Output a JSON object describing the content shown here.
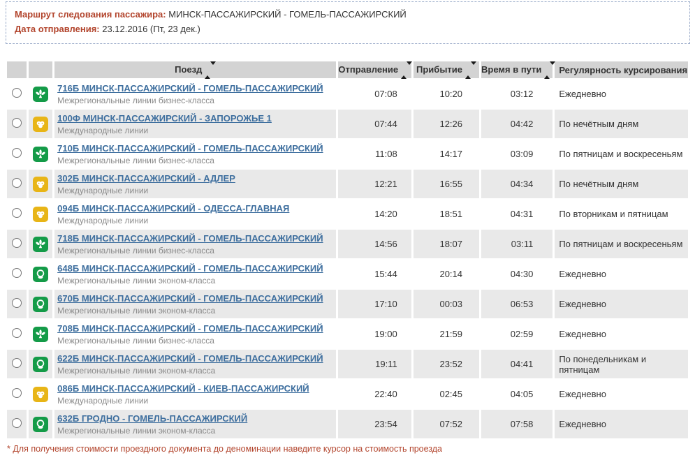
{
  "page": {
    "route_label": "Маршрут следования пассажира:",
    "route_value": "МИНСК-ПАССАЖИРСКИЙ - ГОМЕЛЬ-ПАССАЖИРСКИЙ",
    "date_label": "Дата отправления:",
    "date_value": "23.12.2016 (Пт, 23 дек.)",
    "footnote": "* Для получения стоимости проездного документа до деноминации наведите курсор на стоимость проезда"
  },
  "colors": {
    "accent_red": "#b2442c",
    "link_blue": "#3d6e9e",
    "header_gray": "#d3d3d3",
    "zebra_gray": "#e9e9e9",
    "icon_green": "#149b48",
    "icon_gold": "#e8b517",
    "dashed_border": "#9aabc9"
  },
  "icons": {
    "sort": "sort-updown-icon",
    "business": "business-class-leaf-icon",
    "international": "international-lines-icon",
    "econom": "econom-class-ring-icon"
  },
  "table": {
    "headers": {
      "train": "Поезд",
      "departure": "Отправление",
      "arrival": "Прибытие",
      "duration": "Время в пути",
      "regularity": "Регулярность курсирования"
    },
    "rows": [
      {
        "train": "716Б МИНСК-ПАССАЖИРСКИЙ - ГОМЕЛЬ-ПАССАЖИРСКИЙ",
        "category": "Межрегиональные линии бизнес-класса",
        "icon": "business",
        "departure": "07:08",
        "arrival": "10:20",
        "duration": "03:12",
        "regularity": "Ежедневно"
      },
      {
        "train": "100Ф МИНСК-ПАССАЖИРСКИЙ - ЗАПОРОЖЬЕ 1",
        "category": "Международные линии",
        "icon": "international",
        "departure": "07:44",
        "arrival": "12:26",
        "duration": "04:42",
        "regularity": "По нечётным дням"
      },
      {
        "train": "710Б МИНСК-ПАССАЖИРСКИЙ - ГОМЕЛЬ-ПАССАЖИРСКИЙ",
        "category": "Межрегиональные линии бизнес-класса",
        "icon": "business",
        "departure": "11:08",
        "arrival": "14:17",
        "duration": "03:09",
        "regularity": "По пятницам и воскресеньям"
      },
      {
        "train": "302Б МИНСК-ПАССАЖИРСКИЙ - АДЛЕР",
        "category": "Международные линии",
        "icon": "international",
        "departure": "12:21",
        "arrival": "16:55",
        "duration": "04:34",
        "regularity": "По нечётным дням"
      },
      {
        "train": "094Б МИНСК-ПАССАЖИРСКИЙ - ОДЕССА-ГЛАВНАЯ",
        "category": "Международные линии",
        "icon": "international",
        "departure": "14:20",
        "arrival": "18:51",
        "duration": "04:31",
        "regularity": "По вторникам и пятницам"
      },
      {
        "train": "718Б МИНСК-ПАССАЖИРСКИЙ - ГОМЕЛЬ-ПАССАЖИРСКИЙ",
        "category": "Межрегиональные линии бизнес-класса",
        "icon": "business",
        "departure": "14:56",
        "arrival": "18:07",
        "duration": "03:11",
        "regularity": "По пятницам и воскресеньям"
      },
      {
        "train": "648Б МИНСК-ПАССАЖИРСКИЙ - ГОМЕЛЬ-ПАССАЖИРСКИЙ",
        "category": "Межрегиональные линии эконом-класса",
        "icon": "econom",
        "departure": "15:44",
        "arrival": "20:14",
        "duration": "04:30",
        "regularity": "Ежедневно"
      },
      {
        "train": "670Б МИНСК-ПАССАЖИРСКИЙ - ГОМЕЛЬ-ПАССАЖИРСКИЙ",
        "category": "Межрегиональные линии эконом-класса",
        "icon": "econom",
        "departure": "17:10",
        "arrival": "00:03",
        "duration": "06:53",
        "regularity": "Ежедневно"
      },
      {
        "train": "708Б МИНСК-ПАССАЖИРСКИЙ - ГОМЕЛЬ-ПАССАЖИРСКИЙ",
        "category": "Межрегиональные линии бизнес-класса",
        "icon": "business",
        "departure": "19:00",
        "arrival": "21:59",
        "duration": "02:59",
        "regularity": "Ежедневно"
      },
      {
        "train": "622Б МИНСК-ПАССАЖИРСКИЙ - ГОМЕЛЬ-ПАССАЖИРСКИЙ",
        "category": "Межрегиональные линии эконом-класса",
        "icon": "econom",
        "departure": "19:11",
        "arrival": "23:52",
        "duration": "04:41",
        "regularity": "По понедельникам и пятницам"
      },
      {
        "train": "086Б МИНСК-ПАССАЖИРСКИЙ - КИЕВ-ПАССАЖИРСКИЙ",
        "category": "Международные линии",
        "icon": "international",
        "departure": "22:40",
        "arrival": "02:45",
        "duration": "04:05",
        "regularity": "Ежедневно"
      },
      {
        "train": "632Б ГРОДНО - ГОМЕЛЬ-ПАССАЖИРСКИЙ",
        "category": "Межрегиональные линии эконом-класса",
        "icon": "econom",
        "departure": "23:54",
        "arrival": "07:52",
        "duration": "07:58",
        "regularity": "Ежедневно"
      }
    ]
  }
}
